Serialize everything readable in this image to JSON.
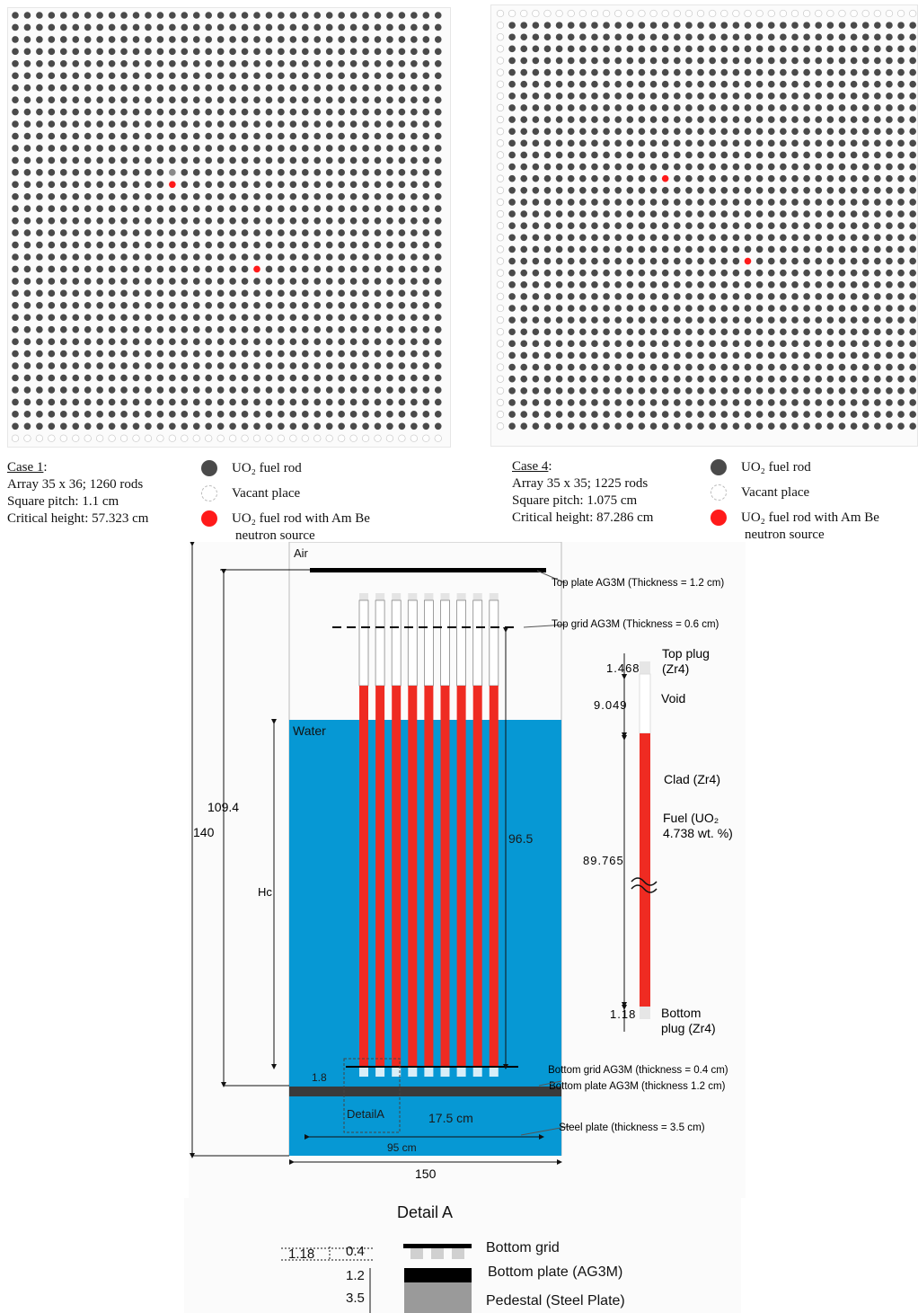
{
  "case1": {
    "title": "Case 1",
    "title_suffix": ":",
    "array": "Array 35 x 36; 1260 rods",
    "pitch": "Square pitch: 1.1 cm",
    "height": "Critical height: 57.323 cm",
    "lattice": {
      "cols": 36,
      "rows": 36,
      "vacant_row": "bottom",
      "source_rods": [
        [
          14,
          13
        ],
        [
          21,
          20
        ]
      ],
      "grey_rod": [
        13,
        13
      ]
    }
  },
  "case4": {
    "title": "Case 4",
    "title_suffix": ":",
    "array": "Array 35 x 35; 1225 rods",
    "pitch": "Square pitch: 1.075 cm",
    "height": "Critical height: 87.286 cm",
    "lattice": {
      "cols": 36,
      "rows": 36,
      "vacant_row": "top",
      "vacant_col": "left",
      "source_rods": [
        [
          14,
          14
        ],
        [
          21,
          21
        ]
      ]
    }
  },
  "legend": {
    "fuel_rod": "UO₂ fuel rod",
    "vacant": "Vacant place",
    "source_line1": "UO₂ fuel rod with Am Be",
    "source_line2": "neutron source"
  },
  "colors": {
    "fuel": "#4a4a4a",
    "vacant": "#ffffff",
    "source": "#ff1a1a",
    "water": "#0698d4",
    "rod_red": "#ef2b22",
    "plate": "#3a3a3a"
  },
  "diagram": {
    "air": "Air",
    "water": "Water",
    "top_plate": "Top plate AG3M (Thickness  =  1.2 cm)",
    "top_grid": "Top grid AG3M (Thickness = 0.6 cm)",
    "bottom_grid": "Bottom grid AG3M (thickness = 0.4 cm)",
    "bottom_plate": "Bottom plate AG3M (thickness 1.2 cm)",
    "steel_plate": "Steel plate (thickness = 3.5 cm)",
    "dim_109": "109.4",
    "dim_140": "140",
    "dim_hc": "Hc",
    "dim_965": "96.5",
    "dim_18": "1.8",
    "detail_a": "DetailA",
    "dim_175": "17.5 cm",
    "dim_95": "95 cm",
    "dim_150": "150",
    "rod": {
      "top_plug": "Top plug",
      "top_plug_mat": "(Zr4)",
      "v1468": "1.468",
      "void": "Void",
      "v9049": "9.049",
      "clad": "Clad (Zr4)",
      "fuel": "Fuel (UO₂",
      "fuel_enr": "4.738 wt. %)",
      "v89765": "89.765",
      "bottom": "Bottom",
      "bottom_plug": "plug (Zr4)",
      "v118": "1.18"
    }
  },
  "detail": {
    "title": "Detail A",
    "v118": "1.18",
    "v04": "0.4",
    "v12": "1.2",
    "v35": "3.5",
    "bottom_grid": "Bottom grid",
    "bottom_plate": "Bottom plate (AG3M)",
    "pedestal": "Pedestal (Steel Plate)"
  }
}
